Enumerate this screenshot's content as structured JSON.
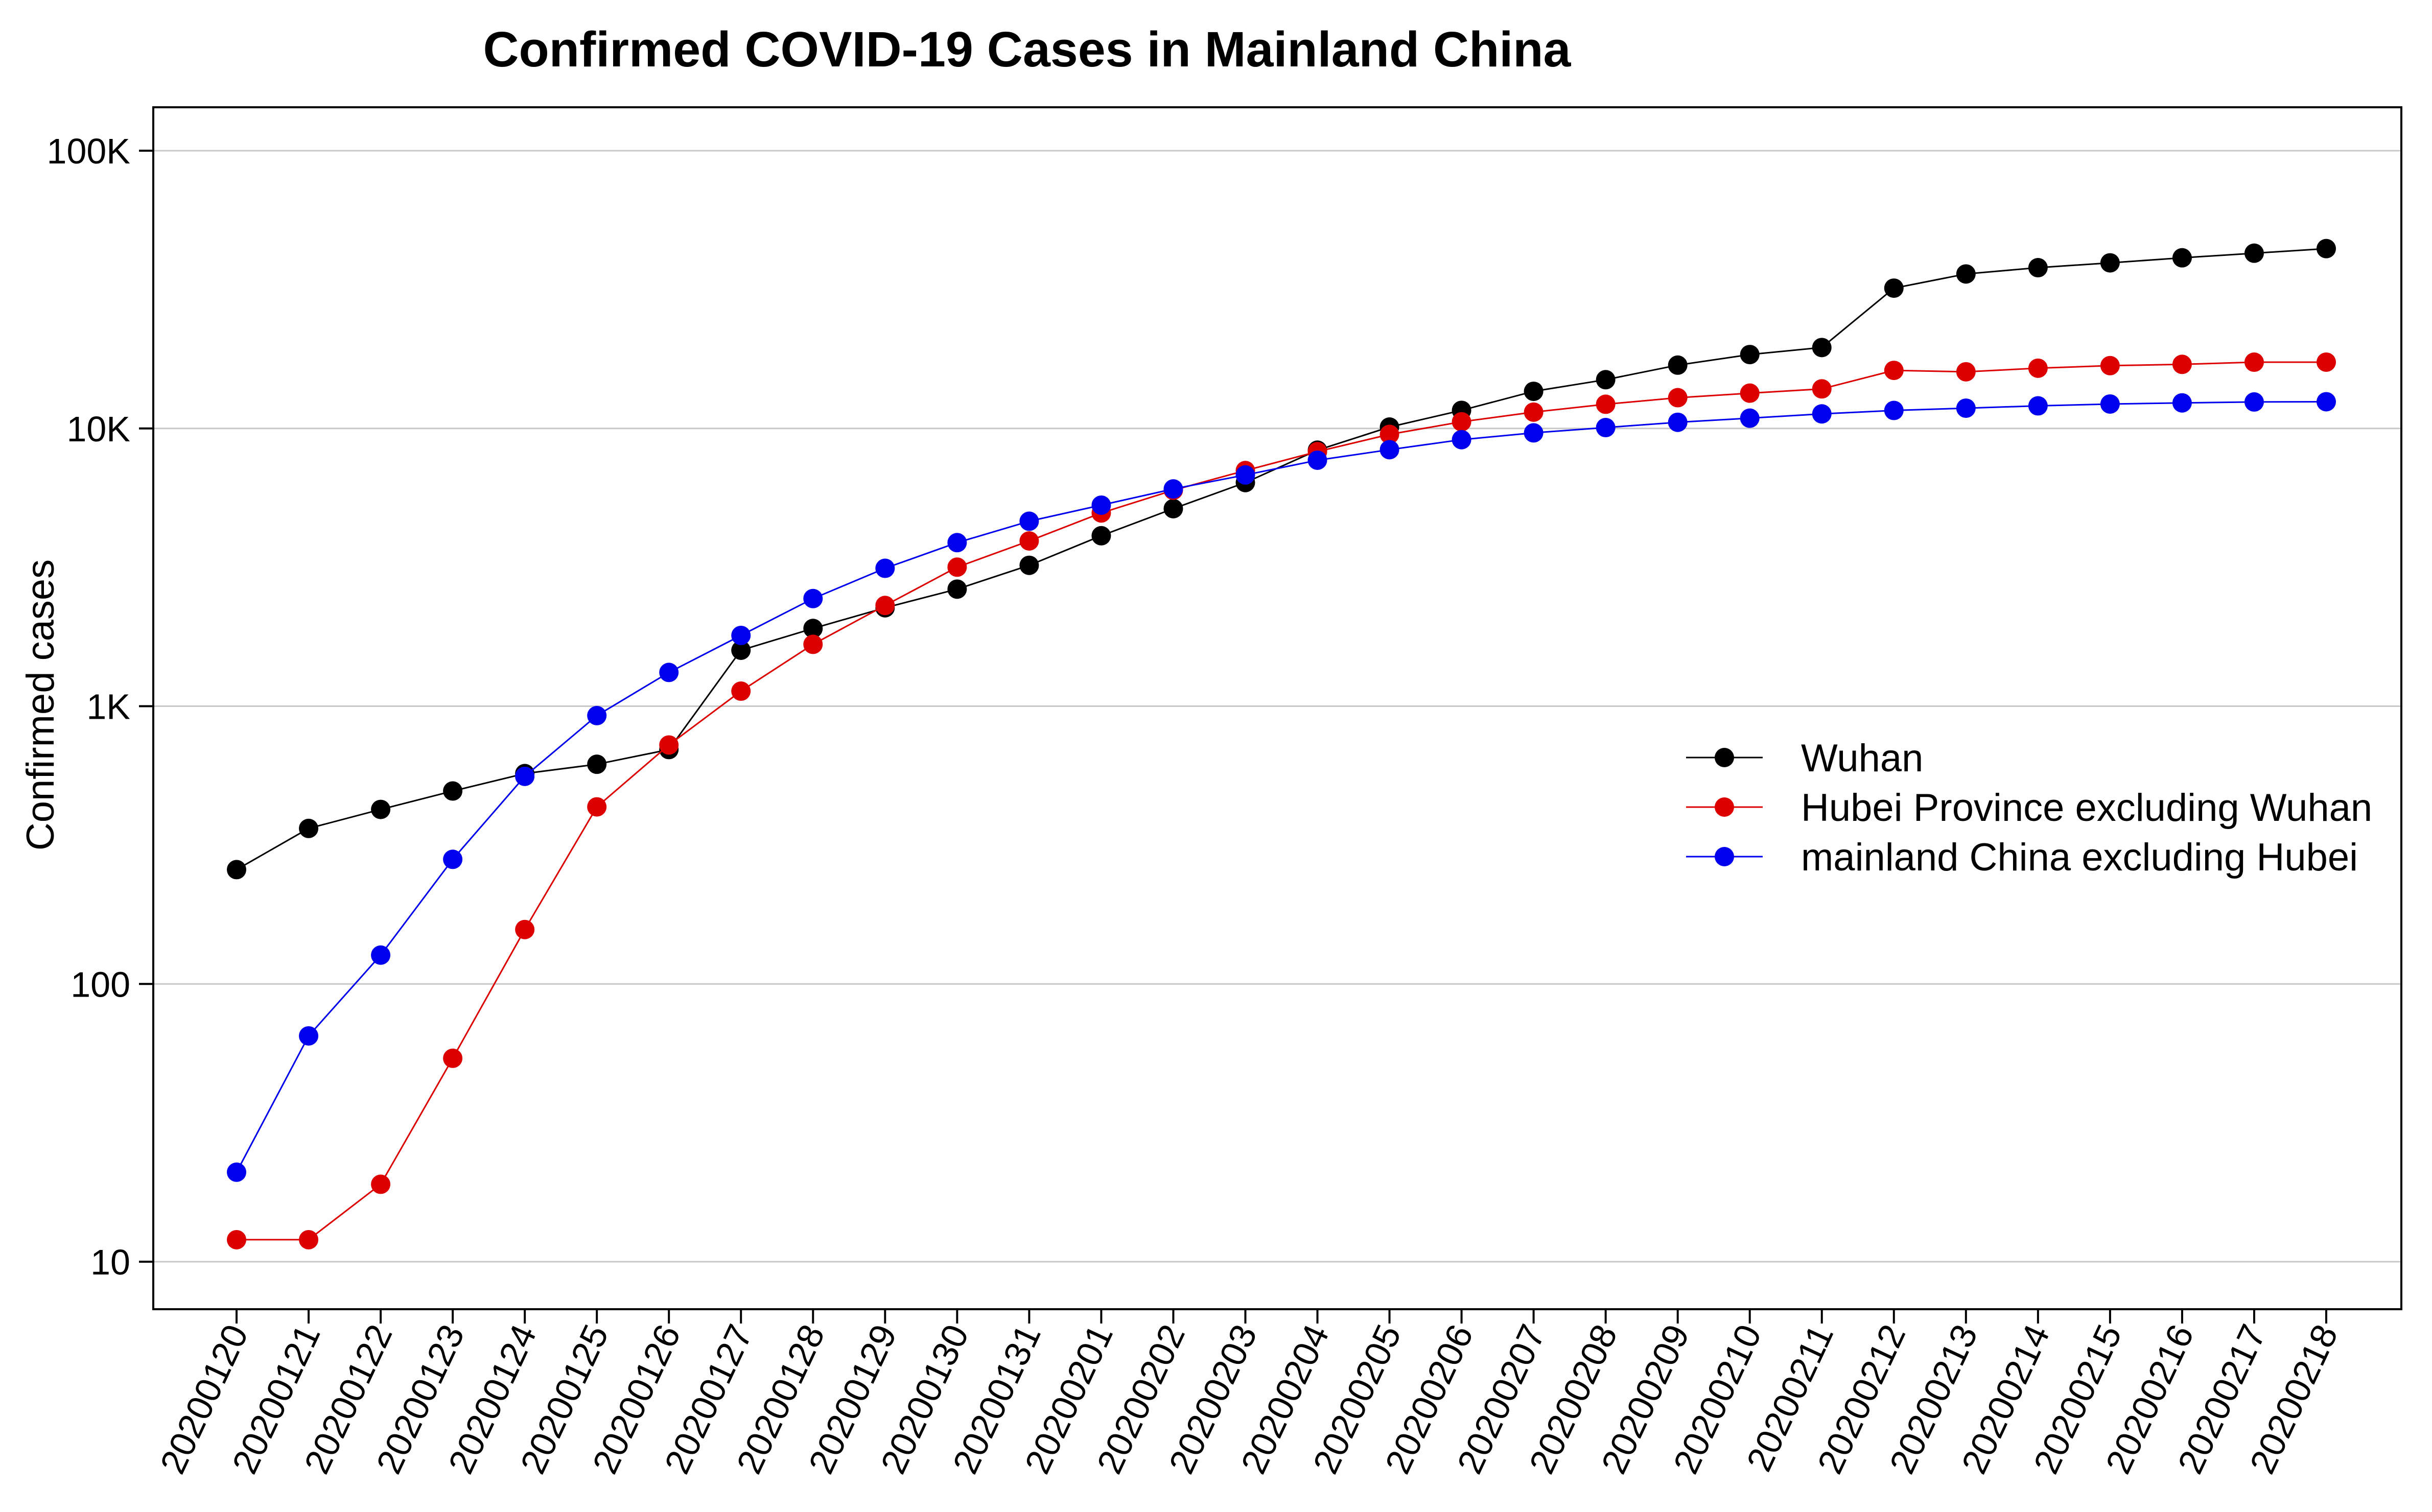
{
  "chart_data": {
    "type": "line",
    "title": "Confirmed COVID-19 Cases in Mainland China",
    "xlabel": "",
    "ylabel": "Confirmed cases",
    "yscale": "log",
    "ylim": [
      7,
      150000
    ],
    "yticks": [
      {
        "value": 10,
        "label": "10"
      },
      {
        "value": 100,
        "label": "100"
      },
      {
        "value": 1000,
        "label": "1K"
      },
      {
        "value": 10000,
        "label": "10K"
      },
      {
        "value": 100000,
        "label": "100K"
      }
    ],
    "grid": "horizontal",
    "legend_position": "right",
    "x": [
      "20200120",
      "20200121",
      "20200122",
      "20200123",
      "20200124",
      "20200125",
      "20200126",
      "20200127",
      "20200128",
      "20200129",
      "20200130",
      "20200131",
      "20200201",
      "20200202",
      "20200203",
      "20200204",
      "20200205",
      "20200206",
      "20200207",
      "20200208",
      "20200209",
      "20200210",
      "20200211",
      "20200212",
      "20200213",
      "20200214",
      "20200215",
      "20200216",
      "20200217",
      "20200218"
    ],
    "series": [
      {
        "name": "Wuhan",
        "color": "#000000",
        "values": [
          258,
          363,
          425,
          495,
          572,
          618,
          698,
          1590,
          1905,
          2261,
          2639,
          3215,
          4109,
          5142,
          6384,
          8351,
          10117,
          11618,
          13603,
          14982,
          16902,
          18454,
          19558,
          32000,
          35991,
          37914,
          39462,
          41152,
          42752,
          44412
        ]
      },
      {
        "name": "Hubei Province excluding Wuhan",
        "color": "#dd0000",
        "values": [
          12,
          12,
          19,
          54,
          157,
          434,
          725,
          1133,
          1670,
          2305,
          3167,
          3935,
          4962,
          5993,
          7054,
          8252,
          9520,
          10567,
          11447,
          12219,
          12903,
          13398,
          13882,
          16182,
          15993,
          16476,
          16831,
          17013,
          17322,
          17324
        ]
      },
      {
        "name": "mainland China excluding Hubei",
        "color": "#0000ee",
        "values": [
          21,
          65,
          127,
          281,
          559,
          925,
          1323,
          1798,
          2441,
          3137,
          3881,
          4633,
          5294,
          6056,
          6801,
          7684,
          8386,
          9112,
          9639,
          10073,
          10523,
          10889,
          11283,
          11609,
          11830,
          12060,
          12242,
          12360,
          12455,
          12477
        ]
      }
    ]
  }
}
